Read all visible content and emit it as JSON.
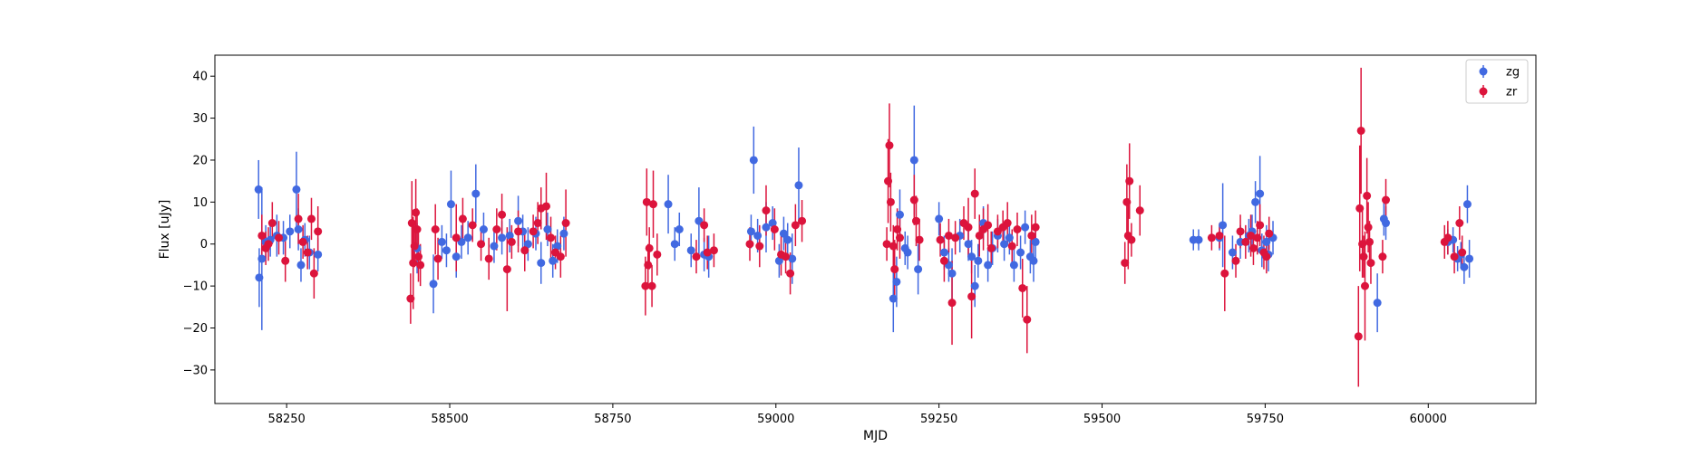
{
  "chart_data": {
    "type": "scatter",
    "title": "",
    "xlabel": "MJD",
    "ylabel": "Flux [uJy]",
    "xlim": [
      58140,
      60165
    ],
    "ylim": [
      -38,
      45
    ],
    "x_ticks": [
      58250,
      58500,
      58750,
      59000,
      59250,
      59500,
      59750,
      60000
    ],
    "y_ticks": [
      -30,
      -20,
      -10,
      0,
      10,
      20,
      30,
      40
    ],
    "grid": false,
    "legend_position": "top-right",
    "series": [
      {
        "name": "zg",
        "color": "#4169e1",
        "points": [
          [
            58207,
            13,
            7
          ],
          [
            58208,
            -8,
            7
          ],
          [
            58212,
            -3.5,
            17
          ],
          [
            58218,
            0.5,
            4
          ],
          [
            58225,
            1,
            4
          ],
          [
            58235,
            2,
            5
          ],
          [
            58245,
            1.5,
            4
          ],
          [
            58255,
            3,
            4
          ],
          [
            58265,
            13,
            9
          ],
          [
            58268,
            3.5,
            5
          ],
          [
            58272,
            -5,
            4
          ],
          [
            58278,
            1,
            4
          ],
          [
            58285,
            -2,
            4
          ],
          [
            58298,
            -2.5,
            4
          ],
          [
            58450,
            -1,
            6
          ],
          [
            58475,
            -9.5,
            7
          ],
          [
            58488,
            0.5,
            4
          ],
          [
            58495,
            -1.5,
            4
          ],
          [
            58502,
            9.5,
            8
          ],
          [
            58510,
            -3,
            5
          ],
          [
            58518,
            0.5,
            4
          ],
          [
            58528,
            1.5,
            4
          ],
          [
            58540,
            12,
            7
          ],
          [
            58552,
            3.5,
            4
          ],
          [
            58568,
            -0.5,
            4
          ],
          [
            58580,
            1.5,
            4
          ],
          [
            58592,
            2,
            4
          ],
          [
            58605,
            5.5,
            6
          ],
          [
            58612,
            3,
            4
          ],
          [
            58620,
            0,
            4
          ],
          [
            58632,
            2.5,
            4
          ],
          [
            58640,
            -4.5,
            5
          ],
          [
            58650,
            3.5,
            4
          ],
          [
            58658,
            -4,
            4
          ],
          [
            58665,
            -0.5,
            4
          ],
          [
            58675,
            2.5,
            4
          ],
          [
            58835,
            9.5,
            7
          ],
          [
            58845,
            0,
            4
          ],
          [
            58852,
            3.5,
            4
          ],
          [
            58870,
            -1.5,
            4
          ],
          [
            58882,
            5.5,
            8
          ],
          [
            58890,
            -2.5,
            4
          ],
          [
            58897,
            -3,
            5
          ],
          [
            58962,
            3,
            4
          ],
          [
            58966,
            20,
            8
          ],
          [
            58972,
            2,
            4
          ],
          [
            58985,
            4,
            6
          ],
          [
            58995,
            5,
            4
          ],
          [
            59005,
            -4,
            4
          ],
          [
            59012,
            2.5,
            4
          ],
          [
            59018,
            1,
            4
          ],
          [
            59025,
            -3.5,
            6
          ],
          [
            59035,
            14,
            9
          ],
          [
            59180,
            -13,
            8
          ],
          [
            59185,
            -9,
            6
          ],
          [
            59190,
            7,
            6
          ],
          [
            59198,
            -1,
            4
          ],
          [
            59202,
            -2,
            4
          ],
          [
            59212,
            20,
            13
          ],
          [
            59218,
            -6,
            6
          ],
          [
            59250,
            6,
            4
          ],
          [
            59258,
            -2,
            4
          ],
          [
            59265,
            -5,
            4
          ],
          [
            59270,
            -7,
            6
          ],
          [
            59282,
            2,
            4
          ],
          [
            59295,
            0,
            4
          ],
          [
            59300,
            -3,
            4
          ],
          [
            59305,
            -10,
            5
          ],
          [
            59310,
            -4,
            4
          ],
          [
            59318,
            5,
            4
          ],
          [
            59325,
            -5,
            4
          ],
          [
            59332,
            -1,
            4
          ],
          [
            59340,
            2,
            4
          ],
          [
            59350,
            0,
            4
          ],
          [
            59358,
            1.5,
            4
          ],
          [
            59365,
            -5,
            4
          ],
          [
            59375,
            -2,
            4
          ],
          [
            59382,
            4,
            4
          ],
          [
            59390,
            -3,
            4
          ],
          [
            59395,
            -4,
            5
          ],
          [
            59398,
            0.5,
            4
          ],
          [
            59640,
            1,
            2.5
          ],
          [
            59648,
            1,
            2.5
          ],
          [
            59680,
            1.5,
            3
          ],
          [
            59685,
            4.5,
            10
          ],
          [
            59700,
            -2,
            4
          ],
          [
            59712,
            0.5,
            4
          ],
          [
            59725,
            2,
            4
          ],
          [
            59730,
            3,
            4
          ],
          [
            59735,
            10,
            5
          ],
          [
            59742,
            12,
            9
          ],
          [
            59745,
            -1.5,
            4
          ],
          [
            59752,
            0.5,
            4
          ],
          [
            59755,
            -2.5,
            4
          ],
          [
            59762,
            1.5,
            4
          ],
          [
            59922,
            -14,
            7
          ],
          [
            59932,
            6,
            4
          ],
          [
            59935,
            5,
            4
          ],
          [
            60030,
            0.5,
            3
          ],
          [
            60038,
            1,
            3
          ],
          [
            60045,
            -3.5,
            3
          ],
          [
            60050,
            -2.5,
            3
          ],
          [
            60055,
            -5.5,
            4
          ],
          [
            60060,
            9.5,
            4.5
          ],
          [
            60063,
            -3.5,
            4.5
          ]
        ]
      },
      {
        "name": "zr",
        "color": "#dc143c",
        "points": [
          [
            58212,
            2,
            5
          ],
          [
            58218,
            -1,
            4
          ],
          [
            58222,
            0,
            4
          ],
          [
            58228,
            5,
            5
          ],
          [
            58238,
            1.5,
            4
          ],
          [
            58248,
            -4,
            5
          ],
          [
            58268,
            6,
            6
          ],
          [
            58275,
            0.5,
            4
          ],
          [
            58282,
            -2,
            4
          ],
          [
            58288,
            6,
            5
          ],
          [
            58292,
            -7,
            6
          ],
          [
            58298,
            3,
            6
          ],
          [
            58440,
            -13,
            6
          ],
          [
            58442,
            5,
            10
          ],
          [
            58444,
            -4.5,
            11
          ],
          [
            58446,
            -0.5,
            5
          ],
          [
            58448,
            7.5,
            8
          ],
          [
            58450,
            3.5,
            5
          ],
          [
            58452,
            -3,
            6
          ],
          [
            58455,
            -5,
            5
          ],
          [
            58478,
            3.5,
            6
          ],
          [
            58482,
            -3.5,
            5
          ],
          [
            58510,
            1.5,
            8
          ],
          [
            58520,
            6,
            5
          ],
          [
            58535,
            4.5,
            4
          ],
          [
            58548,
            0,
            4
          ],
          [
            58560,
            -3.5,
            5
          ],
          [
            58572,
            3.5,
            5
          ],
          [
            58580,
            7,
            5
          ],
          [
            58588,
            -6,
            10
          ],
          [
            58595,
            0.5,
            4
          ],
          [
            58605,
            3,
            5
          ],
          [
            58615,
            -1.5,
            5
          ],
          [
            58628,
            3,
            4
          ],
          [
            58635,
            5,
            5
          ],
          [
            58640,
            8.5,
            5
          ],
          [
            58648,
            9,
            8
          ],
          [
            58655,
            1.5,
            5
          ],
          [
            58662,
            -2,
            4
          ],
          [
            58670,
            -3,
            5
          ],
          [
            58678,
            5,
            8
          ],
          [
            58800,
            -10,
            7
          ],
          [
            58802,
            10,
            8
          ],
          [
            58804,
            -5,
            5
          ],
          [
            58806,
            -1,
            5
          ],
          [
            58810,
            -10,
            5
          ],
          [
            58812,
            9.5,
            8
          ],
          [
            58818,
            -2.5,
            5
          ],
          [
            58878,
            -3,
            4
          ],
          [
            58890,
            4.5,
            4
          ],
          [
            58895,
            -2,
            4
          ],
          [
            58905,
            -1.5,
            4
          ],
          [
            58960,
            0,
            4
          ],
          [
            58975,
            -0.5,
            5
          ],
          [
            58985,
            8,
            6
          ],
          [
            58998,
            3.5,
            5
          ],
          [
            59008,
            -2.5,
            5
          ],
          [
            59015,
            -3,
            4
          ],
          [
            59022,
            -7,
            5
          ],
          [
            59030,
            4.5,
            5
          ],
          [
            59040,
            5.5,
            5
          ],
          [
            59170,
            0,
            4
          ],
          [
            59172,
            15,
            10
          ],
          [
            59174,
            23.5,
            10
          ],
          [
            59176,
            10,
            7
          ],
          [
            59180,
            -0.5,
            5
          ],
          [
            59182,
            -6,
            7
          ],
          [
            59186,
            3.5,
            5
          ],
          [
            59190,
            1.5,
            5
          ],
          [
            59212,
            10.5,
            6
          ],
          [
            59215,
            5.5,
            6
          ],
          [
            59220,
            1,
            5
          ],
          [
            59252,
            1,
            4
          ],
          [
            59258,
            -4,
            5
          ],
          [
            59265,
            2,
            4
          ],
          [
            59270,
            -14,
            10
          ],
          [
            59275,
            1.5,
            4
          ],
          [
            59288,
            5,
            4
          ],
          [
            59295,
            4,
            7
          ],
          [
            59300,
            -12.5,
            10
          ],
          [
            59305,
            12,
            6
          ],
          [
            59312,
            2,
            5
          ],
          [
            59318,
            3.5,
            5
          ],
          [
            59325,
            4.5,
            5
          ],
          [
            59330,
            -1,
            4
          ],
          [
            59340,
            3,
            4
          ],
          [
            59348,
            4,
            4
          ],
          [
            59355,
            5,
            5
          ],
          [
            59362,
            -0.5,
            4
          ],
          [
            59370,
            3.5,
            4
          ],
          [
            59378,
            -10.5,
            7
          ],
          [
            59385,
            -18,
            8
          ],
          [
            59392,
            2,
            5
          ],
          [
            59398,
            4,
            4
          ],
          [
            59535,
            -4.5,
            5
          ],
          [
            59538,
            10,
            9
          ],
          [
            59540,
            2,
            8
          ],
          [
            59542,
            15,
            9
          ],
          [
            59545,
            1,
            4
          ],
          [
            59558,
            8,
            6
          ],
          [
            59668,
            1.5,
            3
          ],
          [
            59680,
            2,
            3
          ],
          [
            59688,
            -7,
            9
          ],
          [
            59705,
            -4,
            4
          ],
          [
            59712,
            3,
            4
          ],
          [
            59720,
            0.5,
            4
          ],
          [
            59728,
            2,
            5
          ],
          [
            59732,
            -1,
            4
          ],
          [
            59738,
            1.5,
            4
          ],
          [
            59742,
            4.5,
            5
          ],
          [
            59748,
            -2,
            4
          ],
          [
            59752,
            -3,
            4
          ],
          [
            59756,
            2.5,
            4
          ],
          [
            59893,
            -22,
            12
          ],
          [
            59895,
            8.5,
            15
          ],
          [
            59897,
            27,
            15
          ],
          [
            59899,
            0,
            8
          ],
          [
            59901,
            -3,
            5
          ],
          [
            59903,
            -10,
            13
          ],
          [
            59906,
            11.5,
            9
          ],
          [
            59908,
            4,
            6
          ],
          [
            59910,
            0.5,
            5
          ],
          [
            59912,
            -4.5,
            5
          ],
          [
            59930,
            -3,
            4
          ],
          [
            59935,
            10.5,
            5
          ],
          [
            60025,
            0.5,
            4
          ],
          [
            60030,
            1.5,
            4
          ],
          [
            60040,
            -3,
            4
          ],
          [
            60048,
            5,
            4
          ],
          [
            60052,
            -2,
            4
          ]
        ]
      }
    ]
  }
}
